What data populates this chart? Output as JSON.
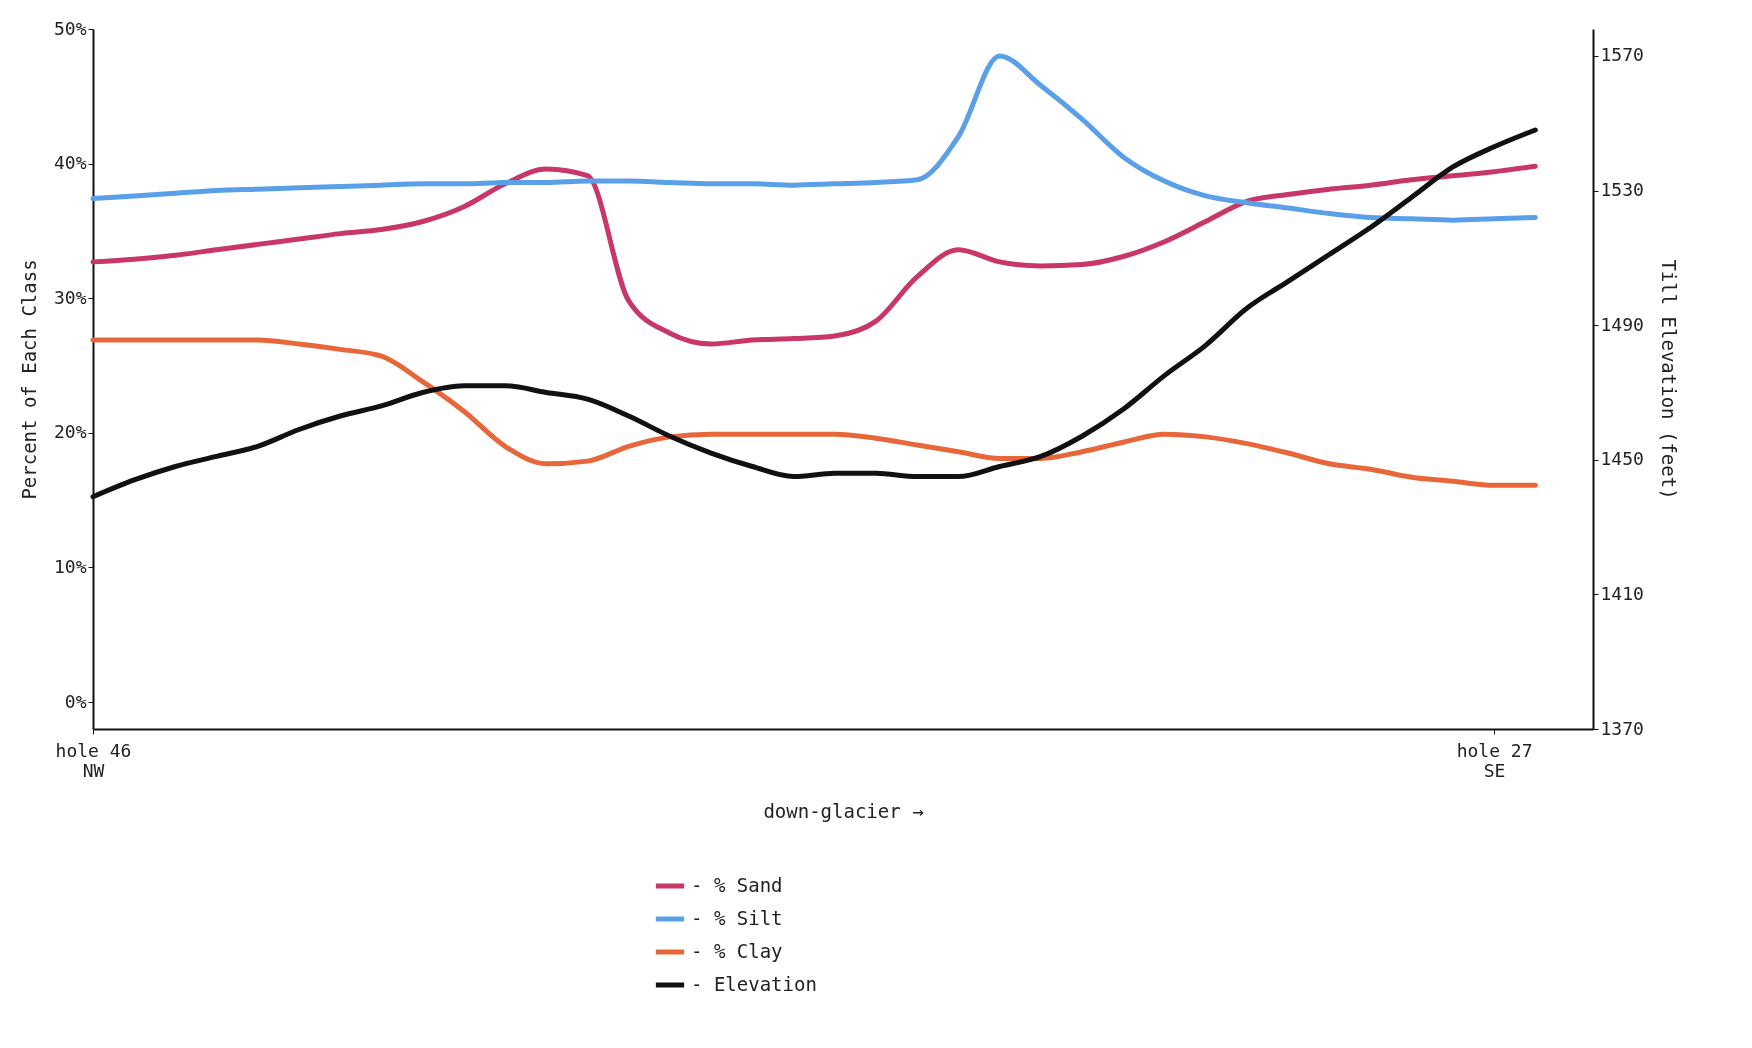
{
  "chart_data": {
    "type": "line",
    "xlabel": "down-glacier →",
    "ylabel": "Percent of Each Class",
    "y2label": "Till Elevation (feet)",
    "categories": [
      "hole 46\nNW",
      null,
      null,
      null,
      null,
      null,
      null,
      null,
      null,
      null,
      null,
      null,
      null,
      null,
      null,
      null,
      null,
      null,
      null,
      null,
      null,
      null,
      null,
      null,
      null,
      null,
      null,
      null,
      null,
      null,
      null,
      null,
      null,
      null,
      "hole 27\nSE",
      null
    ],
    "series": [
      {
        "name": "- % Sand",
        "color": "#c8366a",
        "values": [
          32.7,
          32.9,
          33.2,
          33.6,
          34.0,
          34.4,
          34.8,
          35.1,
          35.7,
          36.8,
          38.5,
          39.6,
          39.1,
          29.8,
          27.4,
          26.6,
          26.9,
          27.0,
          27.2,
          28.3,
          31.6,
          33.6,
          32.7,
          32.4,
          32.5,
          33.1,
          34.2,
          35.7,
          37.2,
          37.7,
          38.1,
          38.4,
          38.8,
          39.1,
          39.4,
          39.8
        ]
      },
      {
        "name": "- % Silt",
        "color": "#5aa0e8",
        "values": [
          37.4,
          37.6,
          37.8,
          38.0,
          38.1,
          38.2,
          38.3,
          38.4,
          38.5,
          38.5,
          38.6,
          38.6,
          38.7,
          38.7,
          38.6,
          38.5,
          38.5,
          38.4,
          38.5,
          38.6,
          38.8,
          42.0,
          48.0,
          45.8,
          43.3,
          40.5,
          38.7,
          37.6,
          37.1,
          36.7,
          36.3,
          36.0,
          35.9,
          35.8,
          35.9,
          36.0
        ]
      },
      {
        "name": "- % Clay",
        "color": "#e8673a",
        "values": [
          26.9,
          26.9,
          26.9,
          26.9,
          26.9,
          26.6,
          26.2,
          25.7,
          23.8,
          21.6,
          19.0,
          17.7,
          17.9,
          19.0,
          19.7,
          19.9,
          19.9,
          19.9,
          19.9,
          19.6,
          19.1,
          18.6,
          18.1,
          18.1,
          18.6,
          19.3,
          19.9,
          19.7,
          19.2,
          18.5,
          17.7,
          17.3,
          16.7,
          16.4,
          16.1,
          16.1
        ]
      },
      {
        "name": "- Elevation",
        "color": "#111111",
        "axis": "y2",
        "values": [
          1439,
          1444,
          1448,
          1451,
          1454,
          1459,
          1463,
          1466,
          1470,
          1472,
          1472,
          1470,
          1468,
          1463,
          1457,
          1452,
          1448,
          1445,
          1446,
          1446,
          1445,
          1445,
          1448,
          1451,
          1457,
          1465,
          1475,
          1484,
          1495,
          1503,
          1511,
          1519,
          1528,
          1537,
          1543,
          1548
        ]
      }
    ],
    "ylim": [
      -2,
      50
    ],
    "yticks": [
      {
        "value": 0,
        "label": "0%"
      },
      {
        "value": 10,
        "label": "10%"
      },
      {
        "value": 20,
        "label": "20%"
      },
      {
        "value": 30,
        "label": "30%"
      },
      {
        "value": 40,
        "label": "40%"
      },
      {
        "value": 50,
        "label": "50%"
      }
    ],
    "y2lim": [
      1370,
      1578
    ],
    "y2ticks": [
      1370,
      1410,
      1450,
      1490,
      1530,
      1570
    ],
    "grid": false,
    "legend": "bottom",
    "line_style": "solid"
  }
}
